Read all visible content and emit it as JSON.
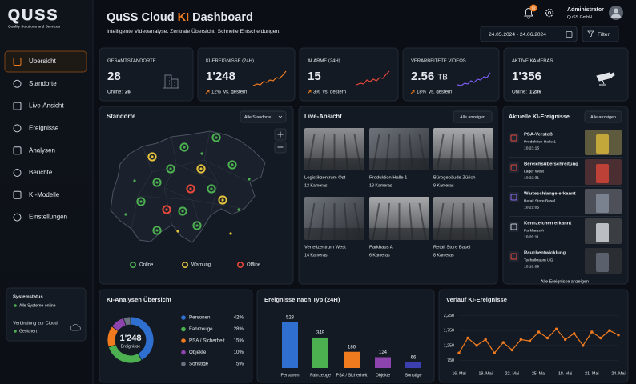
{
  "sidebar": {
    "logo": "QUSS",
    "tagline": "Quality Solutions and Services",
    "nav": [
      "Übersicht",
      "Standorte",
      "Live-Ansicht",
      "Ereignisse",
      "Analysen",
      "Berichte",
      "KI-Modelle",
      "Einstellungen"
    ],
    "status": {
      "title": "Systemstatus",
      "state": "Alle Systeme online",
      "cloud": "Verbindung zur Cloud",
      "cloud_state": "Gesichert"
    }
  },
  "header": {
    "title_start": "QuSS Cloud",
    "title_highlight": "KI",
    "title_end": "Dashboard",
    "subtitle": "Intelligente Videoanalyse. Zentrale Übersicht. Schnelle Entscheidungen.",
    "notifications": "12",
    "user": "Administrator",
    "company": "QuSS GmbH",
    "date_range": "24.05.2024 - 24.06.2024",
    "filter": "Filter"
  },
  "kpis": [
    {
      "label": "GESAMTSTANDORTE",
      "value": "28",
      "note_label": "Online:",
      "note_value": "26"
    },
    {
      "label": "KI-EREIGNISSE (24H)",
      "value": "1'248",
      "trend": "12%",
      "note": "vs. gestern"
    },
    {
      "label": "ALARME (24H)",
      "value": "15",
      "trend": "3%",
      "note": "vs. gestern"
    },
    {
      "label": "VERARBEITETE VIDEOS",
      "value": "2.56",
      "unit": "TB",
      "trend": "18%",
      "note": "vs. gestern"
    },
    {
      "label": "AKTIVE KAMERAS",
      "value": "1'356",
      "note_label": "Online:",
      "note_value": "1'289"
    }
  ],
  "map": {
    "title": "Standorte",
    "filter": "Alle Standorte",
    "legend": [
      "Online",
      "Warnung",
      "Offline"
    ]
  },
  "live": {
    "title": "Live-Ansicht",
    "action": "Alle anzeigen",
    "cameras": [
      {
        "name": "Logistikzentrum Ost",
        "count": "12 Kameras"
      },
      {
        "name": "Produktion Halle 1",
        "count": "18 Kameras"
      },
      {
        "name": "Bürogebäude Zürich",
        "count": "9 Kameras"
      },
      {
        "name": "Verteilzentrum West",
        "count": "14 Kameras"
      },
      {
        "name": "Parkhaus A",
        "count": "6 Kameras"
      },
      {
        "name": "Retail Store Basel",
        "count": "8 Kameras"
      }
    ]
  },
  "events": {
    "title": "Aktuelle KI-Ereignisse",
    "action": "Alle anzeigen",
    "items": [
      {
        "title": "PSA-Verstoß",
        "location": "Produktion Halle 1",
        "time": "10:23:15"
      },
      {
        "title": "Bereichsüberschreitung",
        "location": "Lager West",
        "time": "10:22:31"
      },
      {
        "title": "Warteschlange erkannt",
        "location": "Retail Store Basel",
        "time": "10:21:05"
      },
      {
        "title": "Kennzeichen erkannt",
        "location": "Parkhaus A",
        "time": "10:20:11"
      },
      {
        "title": "Rauchentwicklung",
        "location": "Technikraum UG",
        "time": "10:18:09"
      }
    ],
    "footer": "Alle Ereignisse anzeigen"
  },
  "chart_data": [
    {
      "type": "pie",
      "title": "KI-Analysen Übersicht",
      "total": "1'248",
      "total_label": "Ereignisse",
      "categories": [
        "Personen",
        "Fahrzeuge",
        "PSA / Sicherheit",
        "Objekte",
        "Sonstige"
      ],
      "values": [
        42,
        28,
        15,
        10,
        5
      ],
      "value_labels": [
        "42%",
        "28%",
        "15%",
        "10%",
        "5%"
      ],
      "colors": [
        "#2f6fd0",
        "#4caf50",
        "#f07b1f",
        "#8e44ad",
        "#6b7280"
      ]
    },
    {
      "type": "bar",
      "title": "Ereignisse nach Typ (24H)",
      "categories": [
        "Personen",
        "Fahrzeuge",
        "PSA / Sicherheit",
        "Objekte",
        "Sonstige"
      ],
      "values": [
        523,
        349,
        186,
        124,
        66
      ],
      "colors": [
        "#2f6fd0",
        "#4caf50",
        "#f07b1f",
        "#8e44ad",
        "#3b3fb0"
      ]
    },
    {
      "type": "line",
      "title": "Verlauf KI-Ereignisse",
      "categories": [
        "16. Mai",
        null,
        null,
        "19. Mai",
        null,
        null,
        "22. Mai",
        null,
        null,
        "25. Mai",
        null,
        null,
        "18. Mai",
        null,
        null,
        "21. Mai",
        null,
        null,
        "24. Mai"
      ],
      "values": [
        1000,
        1500,
        1250,
        1450,
        1000,
        1350,
        1100,
        1450,
        1400,
        1700,
        1500,
        1800,
        1450,
        1650,
        1250,
        1700,
        1500,
        1750,
        1600
      ],
      "color": "#f07b1f",
      "ylim": [
        500,
        2500
      ],
      "yticks": [
        750,
        {
          "value": 1250,
          "label": "1,250"
        },
        {
          "value": 1750,
          "label": "1,750"
        },
        {
          "value": 2250,
          "label": "2,250"
        }
      ],
      "grid": true
    }
  ]
}
